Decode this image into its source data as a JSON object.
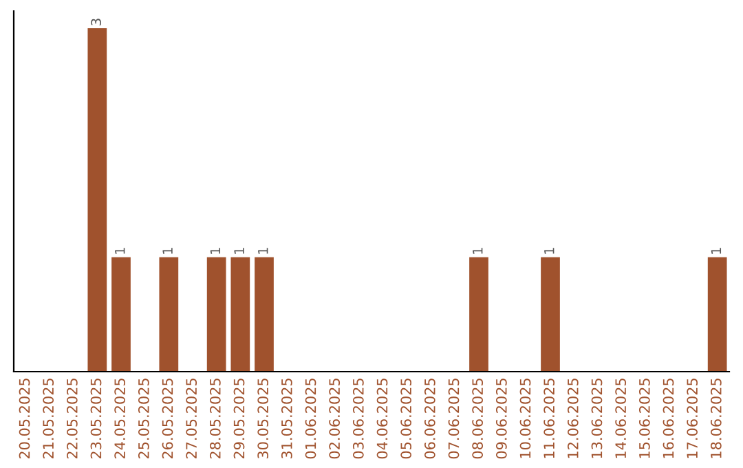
{
  "chart_data": {
    "type": "bar",
    "categories": [
      "20.05.2025",
      "21.05.2025",
      "22.05.2025",
      "23.05.2025",
      "24.05.2025",
      "25.05.2025",
      "26.05.2025",
      "27.05.2025",
      "28.05.2025",
      "29.05.2025",
      "30.05.2025",
      "31.05.2025",
      "01.06.2025",
      "02.06.2025",
      "03.06.2025",
      "04.06.2025",
      "05.06.2025",
      "06.06.2025",
      "07.06.2025",
      "08.06.2025",
      "09.06.2025",
      "10.06.2025",
      "11.06.2025",
      "12.06.2025",
      "13.06.2025",
      "14.06.2025",
      "15.06.2025",
      "16.06.2025",
      "17.06.2025",
      "18.06.2025"
    ],
    "values": [
      0,
      0,
      0,
      3,
      1,
      0,
      1,
      0,
      1,
      1,
      1,
      0,
      0,
      0,
      0,
      0,
      0,
      0,
      0,
      1,
      0,
      0,
      1,
      0,
      0,
      0,
      0,
      0,
      0,
      1
    ],
    "value_labels": [
      null,
      null,
      null,
      "3",
      "1",
      null,
      "1",
      null,
      "1",
      "1",
      "1",
      null,
      null,
      null,
      null,
      null,
      null,
      null,
      null,
      "1",
      null,
      null,
      "1",
      null,
      null,
      null,
      null,
      null,
      null,
      "1"
    ],
    "color": "#a0522d",
    "ylim": [
      0,
      3.15
    ],
    "tick_labels": "x",
    "grid": false,
    "legend": false
  }
}
